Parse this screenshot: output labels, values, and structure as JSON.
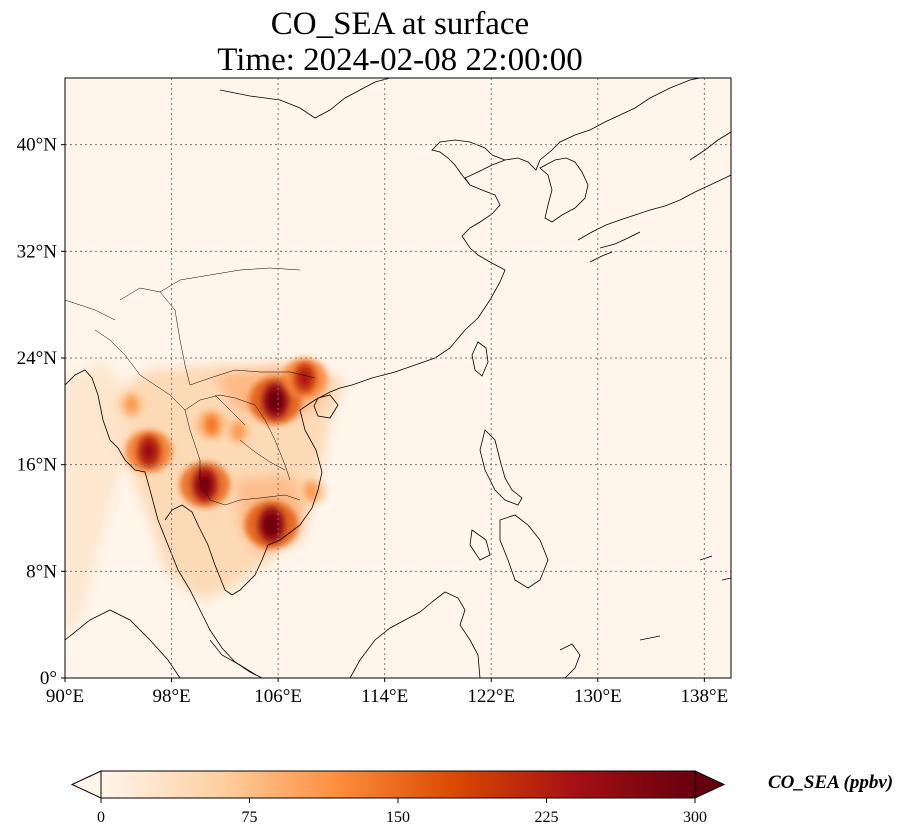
{
  "title": {
    "line1": "CO_SEA at surface",
    "line2": "Time: 2024-02-08 22:00:00"
  },
  "map": {
    "projection": "PlateCarree",
    "lon_range": [
      90,
      140
    ],
    "lat_range": [
      0,
      45
    ],
    "gridlines": "dotted",
    "lon_ticks": [
      {
        "value": 90,
        "label": "90°E"
      },
      {
        "value": 98,
        "label": "98°E"
      },
      {
        "value": 106,
        "label": "106°E"
      },
      {
        "value": 114,
        "label": "114°E"
      },
      {
        "value": 122,
        "label": "122°E"
      },
      {
        "value": 130,
        "label": "130°E"
      },
      {
        "value": 138,
        "label": "138°E"
      }
    ],
    "lat_ticks": [
      {
        "value": 0,
        "label": "0°"
      },
      {
        "value": 8,
        "label": "8°N"
      },
      {
        "value": 16,
        "label": "16°N"
      },
      {
        "value": 24,
        "label": "24°N"
      },
      {
        "value": 32,
        "label": "32°N"
      },
      {
        "value": 40,
        "label": "40°N"
      }
    ],
    "background_color": "#fff5eb",
    "coastline_color": "#000000",
    "hotspots": [
      {
        "lon": 105.5,
        "lat": 11.5,
        "value": 300
      },
      {
        "lon": 105.8,
        "lat": 20.8,
        "value": 300
      },
      {
        "lon": 100.5,
        "lat": 14.5,
        "value": 280
      },
      {
        "lon": 96.3,
        "lat": 17.0,
        "value": 250
      },
      {
        "lon": 108.0,
        "lat": 22.5,
        "value": 230
      },
      {
        "lon": 101.0,
        "lat": 19.0,
        "value": 140
      },
      {
        "lon": 103.0,
        "lat": 18.5,
        "value": 110
      },
      {
        "lon": 95.0,
        "lat": 20.5,
        "value": 110
      },
      {
        "lon": 108.5,
        "lat": 14.0,
        "value": 110
      }
    ]
  },
  "colorbar": {
    "label": "CO_SEA (ppbv)",
    "min": 0,
    "max": 300,
    "extend": "both",
    "colormap": "OrRd",
    "ticks": [
      {
        "value": 0,
        "label": "0"
      },
      {
        "value": 75,
        "label": "75"
      },
      {
        "value": 150,
        "label": "150"
      },
      {
        "value": 225,
        "label": "225"
      },
      {
        "value": 300,
        "label": "300"
      }
    ],
    "colors": [
      "#fff5eb",
      "#fdd0a2",
      "#fd8d3c",
      "#d94801",
      "#a50f15",
      "#67000d"
    ]
  }
}
